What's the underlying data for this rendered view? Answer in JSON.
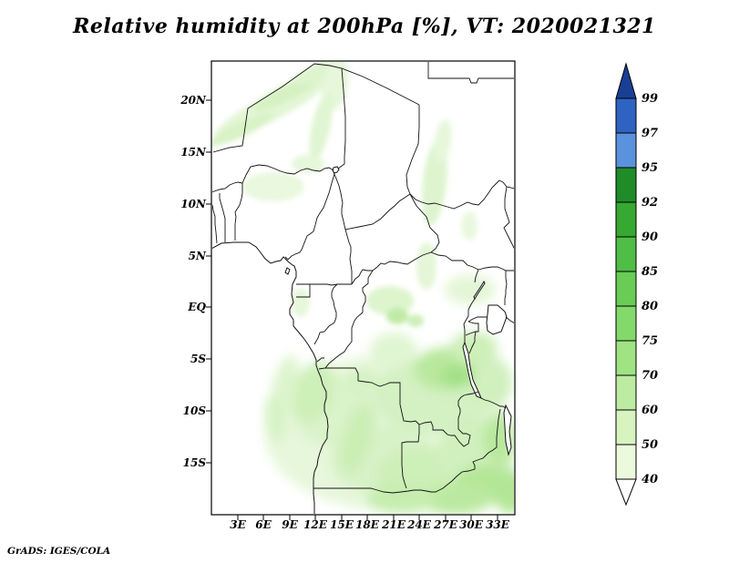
{
  "title": "Relative humidity at 200hPa [%], VT: 2020021321",
  "credit": "GrADS: IGES/COLA",
  "map": {
    "lat_ticks": [
      "20N",
      "15N",
      "10N",
      "5N",
      "EQ",
      "5S",
      "10S",
      "15S"
    ],
    "lon_ticks": [
      "3E",
      "6E",
      "9E",
      "12E",
      "15E",
      "18E",
      "21E",
      "24E",
      "27E",
      "30E",
      "33E"
    ]
  },
  "colorbar": {
    "labels": [
      "99",
      "97",
      "95",
      "92",
      "90",
      "85",
      "80",
      "75",
      "70",
      "60",
      "50",
      "40"
    ],
    "colors_top_to_bottom": [
      "#183f94",
      "#2f63c2",
      "#5b92dd",
      "#1f8c28",
      "#37a832",
      "#4fbe46",
      "#68cc55",
      "#84d96b",
      "#9fe383",
      "#bceca2",
      "#d6f3c0",
      "#ebf9dd",
      "#ffffff"
    ]
  },
  "chart_data": {
    "type": "heatmap",
    "title": "Relative humidity at 200hPa [%], VT: 2020021321",
    "variable": "Relative humidity",
    "pressure_level": "200hPa",
    "units": "%",
    "valid_time": "2020021321",
    "region": {
      "lon_min": "0E",
      "lon_max": "35E",
      "lat_min": "20S",
      "lat_max": "23.7N",
      "area": "Central Africa"
    },
    "x_tick_labels": [
      "3E",
      "6E",
      "9E",
      "12E",
      "15E",
      "18E",
      "21E",
      "24E",
      "27E",
      "30E",
      "33E"
    ],
    "y_tick_labels": [
      "20N",
      "15N",
      "10N",
      "5N",
      "EQ",
      "5S",
      "10S",
      "15S"
    ],
    "shade_levels_percent": [
      40,
      50,
      60,
      70,
      75,
      80,
      85,
      90,
      92,
      95,
      97,
      99
    ],
    "legend": {
      "position": "right",
      "orientation": "vertical",
      "labels_top_to_bottom": [
        "99",
        "97",
        "95",
        "92",
        "90",
        "85",
        "80",
        "75",
        "70",
        "60",
        "50",
        "40"
      ]
    },
    "notable_features": [
      "Pale green streaks (40-60%) angled SW-NE across the Sahara near 15-23N",
      "Faint 40-60% band along 22-25E between 8N and 16N",
      "Broad 50-70% moist region covering Angola, southern DRC, Zambia and Tanzania (about 3S-20S)",
      "Locally higher humidity 70-85% over eastern DRC near 5-10S and along 10-15S, 25-33E",
      "Mostly below 40% (white) over the Gulf of Guinea coast and central map interior"
    ],
    "grid": false
  }
}
